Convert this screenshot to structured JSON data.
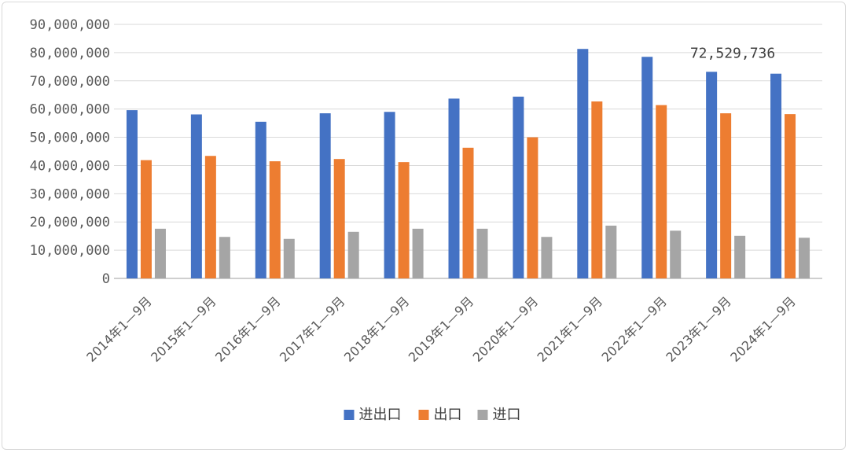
{
  "chart_data": {
    "type": "bar",
    "title": "",
    "xlabel": "",
    "ylabel": "",
    "ylim": [
      0,
      90000000
    ],
    "yticks": [
      0,
      10000000,
      20000000,
      30000000,
      40000000,
      50000000,
      60000000,
      70000000,
      80000000,
      90000000
    ],
    "ytick_labels": [
      "0",
      "10,000,000",
      "20,000,000",
      "30,000,000",
      "40,000,000",
      "50,000,000",
      "60,000,000",
      "70,000,000",
      "80,000,000",
      "90,000,000"
    ],
    "grid": true,
    "legend": "bottom",
    "categories": [
      "2014年1—9月",
      "2015年1—9月",
      "2016年1—9月",
      "2017年1—9月",
      "2018年1—9月",
      "2019年1—9月",
      "2020年1—9月",
      "2021年1—9月",
      "2022年1—9月",
      "2023年1—9月",
      "2024年1—9月"
    ],
    "series": [
      {
        "name": "进出口",
        "color": "#4472c4",
        "values": [
          59600000,
          58100000,
          55500000,
          58500000,
          59000000,
          63700000,
          64400000,
          81300000,
          78500000,
          73200000,
          72529736
        ]
      },
      {
        "name": "出口",
        "color": "#ed7d31",
        "values": [
          41900000,
          43400000,
          41500000,
          42300000,
          41200000,
          46300000,
          50000000,
          62700000,
          61400000,
          58500000,
          58200000
        ]
      },
      {
        "name": "进口",
        "color": "#a5a5a5",
        "values": [
          17600000,
          14700000,
          14000000,
          16500000,
          17600000,
          17600000,
          14700000,
          18700000,
          16900000,
          15100000,
          14400000
        ]
      }
    ],
    "annotations": [
      {
        "text": "72,529,736",
        "series": 0,
        "category": 10
      }
    ]
  }
}
